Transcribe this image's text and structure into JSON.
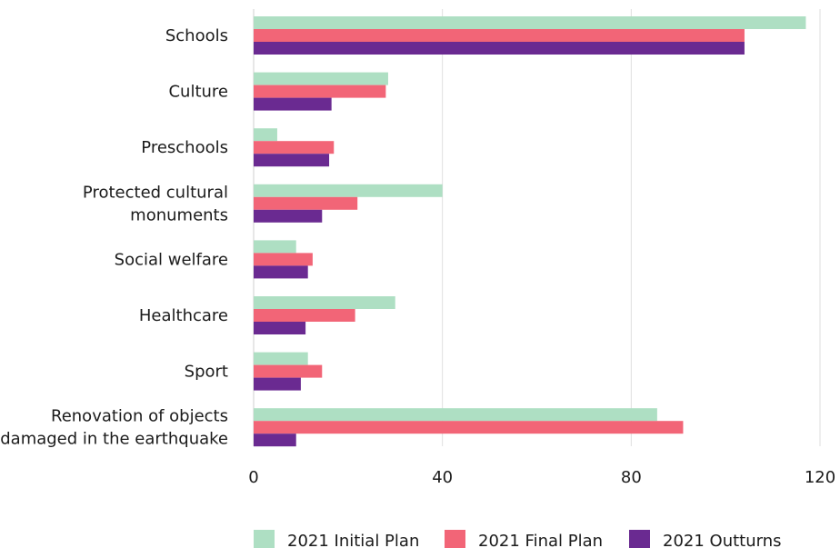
{
  "chart_data": {
    "type": "bar",
    "orientation": "horizontal",
    "categories": [
      [
        "Schools"
      ],
      [
        "Culture"
      ],
      [
        "Preschools"
      ],
      [
        "Protected cultural",
        "monuments"
      ],
      [
        "Social welfare"
      ],
      [
        "Healthcare"
      ],
      [
        "Sport"
      ],
      [
        "Renovation of objects",
        "damaged in the earthquake"
      ]
    ],
    "series": [
      {
        "name": "2021 Initial Plan",
        "color": "#aedfc3",
        "values": [
          117,
          28.5,
          5,
          40,
          9,
          30,
          11.5,
          85.5
        ]
      },
      {
        "name": "2021 Final Plan",
        "color": "#f26577",
        "values": [
          104,
          28,
          17,
          22,
          12.5,
          21.5,
          14.5,
          91
        ]
      },
      {
        "name": "2021 Outturns",
        "color": "#6a2a91",
        "values": [
          104,
          16.5,
          16,
          14.5,
          11.5,
          11,
          10,
          9
        ]
      }
    ],
    "xlim": [
      0,
      120
    ],
    "xticks": [
      "0",
      "40",
      "80",
      "120"
    ],
    "xtick_values": [
      0,
      40,
      80,
      120
    ],
    "grid": "vertical",
    "legend": "bottom"
  }
}
